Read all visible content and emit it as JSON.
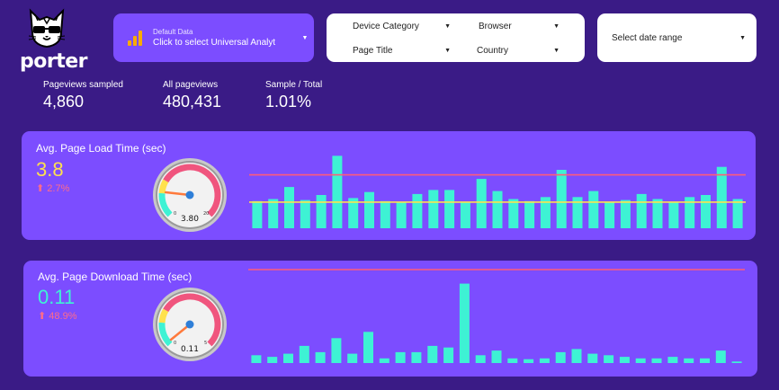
{
  "brand": {
    "name": "porter",
    "icon": "cat-sunglasses-icon"
  },
  "datasource": {
    "icon": "analytics-bars-icon",
    "caption": "Default Data",
    "label": "Click to select Universal Analytics"
  },
  "filters": {
    "device_category": "Device Category",
    "browser": "Browser",
    "page_title": "Page Title",
    "country": "Country"
  },
  "date_range": {
    "placeholder": "Select date range"
  },
  "kpis": [
    {
      "label": "Pageviews sampled",
      "value": "4,860"
    },
    {
      "label": "All pageviews",
      "value": "480,431"
    },
    {
      "label": "Sample / Total",
      "value": "1.01%"
    }
  ],
  "colors": {
    "background": "#3a1b86",
    "card": "#7c4dff",
    "bar": "#3ef2d4",
    "line_red": "#ff5c7a",
    "line_yellow": "#ffe14d",
    "value_yellow": "#ffe14d",
    "value_cyan": "#3ef2d4",
    "delta": "#ff6b8a"
  },
  "load_time": {
    "title": "Avg. Page Load Time (sec)",
    "value": "3.8",
    "delta": "2.7%",
    "delta_icon": "arrow-up-icon",
    "gauge": {
      "min": "0",
      "max": "20",
      "value": 3.8,
      "value_label": "3.80"
    }
  },
  "download_time": {
    "title": "Avg. Page Download Time (sec)",
    "value": "0.11",
    "delta": "48.9%",
    "delta_icon": "arrow-up-icon",
    "gauge": {
      "min": "0",
      "max": "5",
      "value": 0.11,
      "value_label": "0.11"
    }
  },
  "chart_data": [
    {
      "type": "bar",
      "title": "Avg. Page Load Time (sec)",
      "values": [
        2.7,
        2.9,
        4.1,
        2.8,
        3.3,
        7.2,
        3.0,
        3.6,
        2.7,
        2.6,
        3.4,
        3.8,
        3.8,
        2.6,
        4.9,
        3.7,
        2.9,
        2.7,
        3.1,
        5.8,
        3.1,
        3.7,
        2.6,
        2.8,
        3.4,
        2.9,
        2.6,
        3.1,
        3.3,
        6.1,
        2.9
      ],
      "ylim": [
        0,
        7.5
      ],
      "reference_lines": [
        {
          "value": 5.3,
          "color": "#ff5c7a"
        },
        {
          "value": 2.6,
          "color": "#ffe14d"
        }
      ]
    },
    {
      "type": "bar",
      "title": "Avg. Page Download Time (sec)",
      "values": [
        0.1,
        0.08,
        0.12,
        0.22,
        0.14,
        0.32,
        0.12,
        0.4,
        0.06,
        0.14,
        0.14,
        0.22,
        0.2,
        1.02,
        0.1,
        0.16,
        0.06,
        0.05,
        0.06,
        0.14,
        0.18,
        0.12,
        0.1,
        0.08,
        0.06,
        0.06,
        0.08,
        0.06,
        0.06,
        0.16,
        0.02
      ],
      "ylim": [
        0,
        1.2
      ],
      "reference_lines": [
        {
          "value": 1.2,
          "color": "#ff5c7a"
        }
      ]
    }
  ]
}
